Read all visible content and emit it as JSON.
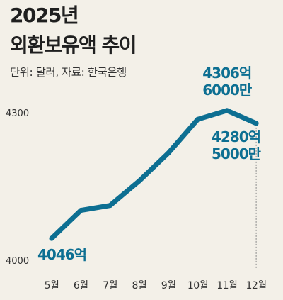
{
  "title_line1": "2025년",
  "title_line2": "외환보유액 추이",
  "unit_note": "단위: 달러, 자료: 한국은행",
  "chart_data": {
    "type": "line",
    "title": "2025년 외환보유액 추이",
    "unit": "달러",
    "source": "한국은행",
    "categories": [
      "5월",
      "6월",
      "7월",
      "8월",
      "9월",
      "10월",
      "11월",
      "12월"
    ],
    "series": [
      {
        "values": [
          4046,
          4103,
          4113,
          4163,
          4220,
          4288,
          4306,
          4280
        ]
      }
    ],
    "y_ticks": [
      "4300",
      "4000"
    ],
    "ylim": [
      4000,
      4300
    ],
    "grid": false,
    "line_color": "#0d6f92",
    "data_labels": [
      {
        "index": 0,
        "lines": [
          "4046억"
        ]
      },
      {
        "index": 6,
        "lines": [
          "4306억",
          "6000만"
        ]
      },
      {
        "index": 7,
        "lines": [
          "4280억",
          "5000만"
        ]
      }
    ]
  }
}
